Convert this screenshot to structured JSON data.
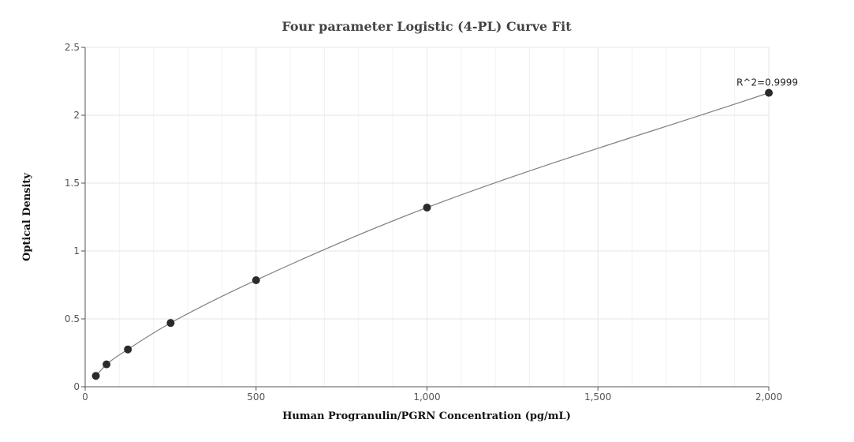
{
  "chart_data": {
    "type": "scatter",
    "title": "Four parameter Logistic (4-PL) Curve Fit",
    "xlabel": "Human Progranulin/PGRN Concentration (pg/mL)",
    "ylabel": "Optical Density",
    "xlim": [
      0,
      2000
    ],
    "ylim": [
      0,
      2.5
    ],
    "x_ticks": [
      0,
      500,
      1000,
      1500,
      2000
    ],
    "x_tick_labels": [
      "0",
      "500",
      "1,000",
      "1,500",
      "2,000"
    ],
    "y_ticks": [
      0,
      0.5,
      1,
      1.5,
      2,
      2.5
    ],
    "y_tick_labels": [
      "0",
      "0.5",
      "1",
      "1.5",
      "2",
      "2.5"
    ],
    "grid": true,
    "points": [
      {
        "x": 31.25,
        "y": 0.08
      },
      {
        "x": 62.5,
        "y": 0.165
      },
      {
        "x": 125,
        "y": 0.275
      },
      {
        "x": 250,
        "y": 0.47
      },
      {
        "x": 500,
        "y": 0.785
      },
      {
        "x": 1000,
        "y": 1.32
      },
      {
        "x": 2000,
        "y": 2.165
      }
    ],
    "fit_curve": "4PL",
    "annotation": "R^2=0.9999",
    "colors": {
      "points": "#2b2b2b",
      "curve": "#808080",
      "grid": "#e6e6e6",
      "axis": "#555555"
    }
  }
}
